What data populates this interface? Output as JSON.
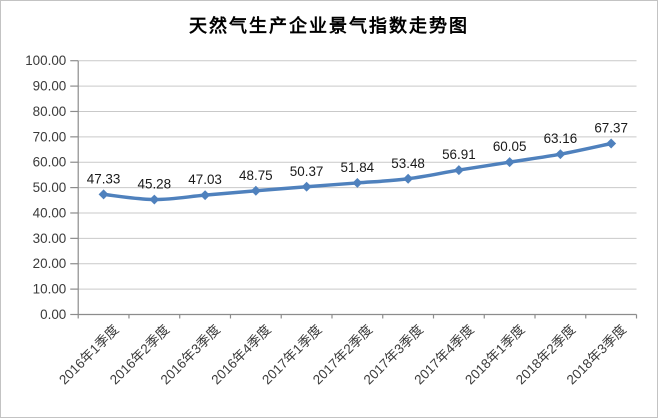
{
  "chart_data": {
    "type": "line",
    "title": "天然气生产企业景气指数走势图",
    "categories": [
      "2016年1季度",
      "2016年2季度",
      "2016年3季度",
      "2016年4季度",
      "2017年1季度",
      "2017年2季度",
      "2017年3季度",
      "2017年4季度",
      "2018年1季度",
      "2018年2季度",
      "2018年3季度"
    ],
    "values": [
      47.33,
      45.28,
      47.03,
      48.75,
      50.37,
      51.84,
      53.48,
      56.91,
      60.05,
      63.16,
      67.37
    ],
    "data_labels": [
      "47.33",
      "45.28",
      "47.03",
      "48.75",
      "50.37",
      "51.84",
      "53.48",
      "56.91",
      "60.05",
      "63.16",
      "67.37"
    ],
    "xlabel": "",
    "ylabel": "",
    "ylim": [
      0,
      100
    ],
    "ytick_step": 10,
    "ytick_decimals": 2,
    "grid": true,
    "legend_position": "none",
    "marker_shape": "diamond",
    "colors": {
      "series_line": "#4f81bd",
      "marker": "#4f81bd",
      "gridline": "#c9c9c9",
      "axis": "#8c8c8c",
      "tick_label": "#3b3b3b",
      "data_label": "#1a1a1a",
      "title": "#000000",
      "background": "#ffffff",
      "frame_border": "#c3c3c3"
    }
  }
}
